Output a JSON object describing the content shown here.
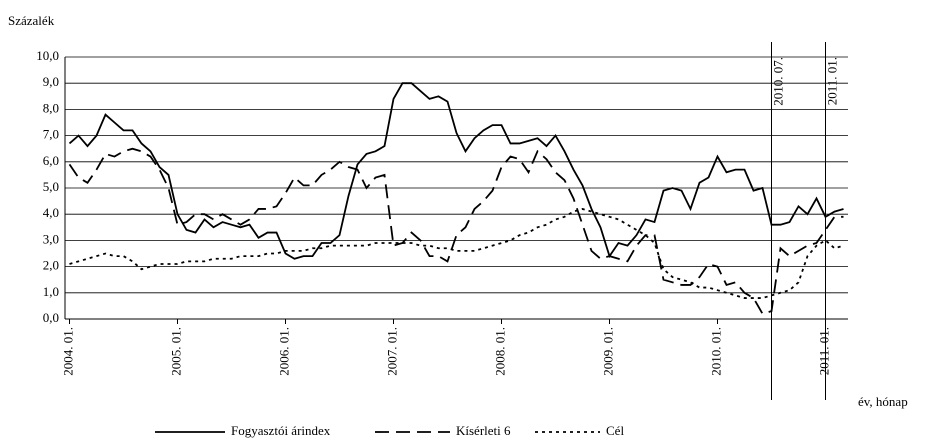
{
  "chart_data": {
    "type": "line",
    "ylabel": "Százalék",
    "xlabel": "év, hónap",
    "categories": [
      "2004. 01.",
      null,
      null,
      null,
      null,
      null,
      null,
      null,
      null,
      null,
      null,
      null,
      "2005. 01.",
      null,
      null,
      null,
      null,
      null,
      null,
      null,
      null,
      null,
      null,
      null,
      "2006. 01.",
      null,
      null,
      null,
      null,
      null,
      null,
      null,
      null,
      null,
      null,
      null,
      "2007. 01.",
      null,
      null,
      null,
      null,
      null,
      null,
      null,
      null,
      null,
      null,
      null,
      "2008. 01.",
      null,
      null,
      null,
      null,
      null,
      null,
      null,
      null,
      null,
      null,
      null,
      "2009. 01.",
      null,
      null,
      null,
      null,
      null,
      null,
      null,
      null,
      null,
      null,
      null,
      "2010. 01.",
      null,
      null,
      null,
      null,
      null,
      null,
      null,
      null,
      null,
      null,
      null,
      "2011. 01.",
      null,
      null
    ],
    "series": [
      {
        "name": "Fogyasztói árindex",
        "color": "#000000",
        "dash": "solid",
        "values": [
          6.7,
          7.0,
          6.6,
          7.0,
          7.8,
          7.5,
          7.2,
          7.2,
          6.7,
          6.4,
          5.8,
          5.5,
          4.0,
          3.4,
          3.3,
          3.8,
          3.5,
          3.7,
          3.6,
          3.5,
          3.6,
          3.1,
          3.3,
          3.3,
          2.5,
          2.3,
          2.4,
          2.4,
          2.9,
          2.9,
          3.2,
          4.7,
          5.9,
          6.3,
          6.4,
          6.6,
          8.4,
          9.0,
          9.0,
          8.7,
          8.4,
          8.5,
          8.3,
          7.1,
          6.4,
          6.9,
          7.2,
          7.4,
          7.4,
          6.7,
          6.7,
          6.8,
          6.9,
          6.6,
          7.0,
          6.4,
          5.7,
          5.1,
          4.2,
          3.5,
          2.4,
          2.9,
          2.8,
          3.2,
          3.8,
          3.7,
          4.9,
          5.0,
          4.9,
          4.2,
          5.2,
          5.4,
          6.2,
          5.6,
          5.7,
          5.7,
          4.9,
          5.0,
          3.6,
          3.6,
          3.7,
          4.3,
          4.0,
          4.6,
          3.9,
          4.1,
          4.2
        ]
      },
      {
        "name": "Kísérleti 6",
        "color": "#000000",
        "dash": "dashed",
        "values": [
          5.9,
          5.4,
          5.2,
          5.7,
          6.3,
          6.2,
          6.4,
          6.5,
          6.4,
          6.2,
          5.7,
          5.0,
          3.6,
          3.7,
          4.0,
          4.0,
          3.8,
          4.0,
          3.8,
          3.6,
          3.8,
          4.2,
          4.2,
          4.3,
          4.8,
          5.4,
          5.1,
          5.1,
          5.5,
          5.7,
          6.0,
          5.8,
          5.7,
          5.0,
          5.4,
          5.5,
          2.8,
          2.9,
          3.3,
          3.0,
          2.4,
          2.4,
          2.2,
          3.2,
          3.5,
          4.2,
          4.5,
          4.9,
          5.8,
          6.2,
          6.1,
          5.6,
          6.4,
          6.1,
          5.6,
          5.3,
          4.6,
          3.6,
          2.6,
          2.3,
          2.4,
          2.3,
          2.2,
          2.8,
          3.2,
          3.2,
          1.5,
          1.4,
          1.3,
          1.3,
          1.6,
          2.1,
          2.0,
          1.3,
          1.4,
          1.0,
          0.8,
          0.2,
          0.3,
          2.7,
          2.4,
          2.6,
          2.8,
          2.9,
          3.4,
          3.9,
          3.9
        ]
      },
      {
        "name": "Cél",
        "color": "#000000",
        "dash": "dotted",
        "values": [
          2.1,
          2.2,
          2.3,
          2.4,
          2.5,
          2.4,
          2.4,
          2.2,
          1.9,
          2.0,
          2.1,
          2.1,
          2.1,
          2.2,
          2.2,
          2.2,
          2.3,
          2.3,
          2.3,
          2.4,
          2.4,
          2.4,
          2.5,
          2.5,
          2.6,
          2.6,
          2.6,
          2.7,
          2.7,
          2.8,
          2.8,
          2.8,
          2.8,
          2.8,
          2.9,
          2.9,
          2.9,
          2.9,
          2.9,
          2.8,
          2.8,
          2.7,
          2.7,
          2.6,
          2.6,
          2.6,
          2.7,
          2.8,
          2.9,
          3.0,
          3.2,
          3.3,
          3.5,
          3.6,
          3.8,
          3.9,
          4.1,
          4.2,
          4.1,
          4.0,
          3.9,
          3.8,
          3.6,
          3.4,
          3.2,
          2.9,
          1.9,
          1.6,
          1.5,
          1.4,
          1.2,
          1.2,
          1.1,
          1.0,
          0.9,
          0.8,
          0.8,
          0.8,
          0.9,
          1.0,
          1.1,
          1.4,
          2.4,
          2.8,
          3.0,
          2.7,
          2.8
        ]
      }
    ],
    "annotations": [
      {
        "text": "2010. 07.",
        "index": 78
      },
      {
        "text": "2011. 01.",
        "index": 84
      }
    ],
    "ylim": [
      0,
      10
    ],
    "yticks": [
      {
        "value": 0,
        "label": "0,0"
      },
      {
        "value": 1,
        "label": "1,0"
      },
      {
        "value": 2,
        "label": "2,0"
      },
      {
        "value": 3,
        "label": "3,0"
      },
      {
        "value": 4,
        "label": "4,0"
      },
      {
        "value": 5,
        "label": "5,0"
      },
      {
        "value": 6,
        "label": "6,0"
      },
      {
        "value": 7,
        "label": "7,0"
      },
      {
        "value": 8,
        "label": "8,0"
      },
      {
        "value": 9,
        "label": "9,0"
      },
      {
        "value": 10,
        "label": "10,0"
      }
    ],
    "grid": true,
    "legend": "bottom"
  }
}
